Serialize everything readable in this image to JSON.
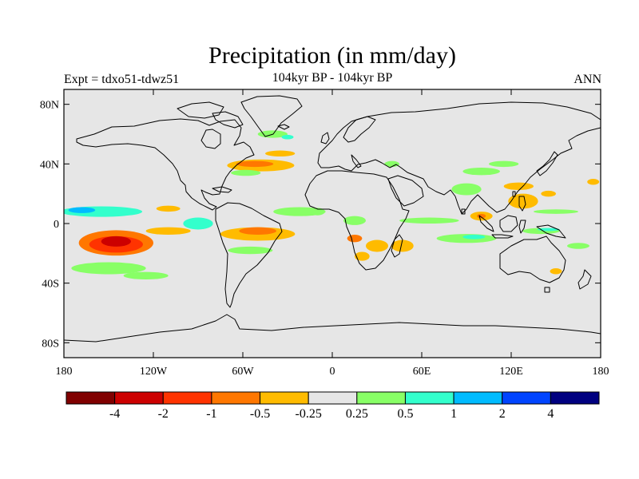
{
  "header": {
    "title": "Precipitation (in mm/day)",
    "experiment": "Expt = tdxo51-tdwz51",
    "period": "104kyr BP - 104kyr BP",
    "season": "ANN"
  },
  "map": {
    "projection": "cylindrical equidistant",
    "lon_range": [
      -180,
      180
    ],
    "lat_range": [
      -90,
      90
    ],
    "background_color": "#e6e6e6",
    "lat_ticks": [
      {
        "value": 80,
        "label": "80N"
      },
      {
        "value": 40,
        "label": "40N"
      },
      {
        "value": 0,
        "label": "0"
      },
      {
        "value": -40,
        "label": "40S"
      },
      {
        "value": -80,
        "label": "80S"
      }
    ],
    "lon_ticks": [
      {
        "value": -180,
        "label": "180"
      },
      {
        "value": -120,
        "label": "120W"
      },
      {
        "value": -60,
        "label": "60W"
      },
      {
        "value": 0,
        "label": "0"
      },
      {
        "value": 60,
        "label": "60E"
      },
      {
        "value": 120,
        "label": "120E"
      },
      {
        "value": 180,
        "label": "180"
      }
    ]
  },
  "colorbar": {
    "colors": [
      "#800000",
      "#cc0000",
      "#ff3300",
      "#ff7700",
      "#ffbb00",
      "#e6e6e6",
      "#88ff66",
      "#33ffcc",
      "#00bbff",
      "#0044ff",
      "#000080"
    ],
    "labels": [
      "-4",
      "-2",
      "-1",
      "-0.5",
      "-0.25",
      "0.25",
      "0.5",
      "1",
      "2",
      "4"
    ]
  },
  "anomalies": [
    {
      "name": "n-pacific-itcz",
      "lon": -155,
      "lat": 8,
      "w": 55,
      "h": 7,
      "level": 7
    },
    {
      "name": "n-pacific-itcz-core",
      "lon": -168,
      "lat": 9,
      "w": 18,
      "h": 4,
      "level": 8
    },
    {
      "name": "pacific-positive-small",
      "lon": -110,
      "lat": 10,
      "w": 16,
      "h": 4,
      "level": 4
    },
    {
      "name": "spcz-dry",
      "lon": -145,
      "lat": -13,
      "w": 50,
      "h": 17,
      "level": 3
    },
    {
      "name": "spcz-dry-mid",
      "lon": -145,
      "lat": -14,
      "w": 36,
      "h": 11,
      "level": 2
    },
    {
      "name": "spcz-dry-core",
      "lon": -145,
      "lat": -12,
      "w": 20,
      "h": 7,
      "level": 1
    },
    {
      "name": "s-pacific-wet",
      "lon": -150,
      "lat": -30,
      "w": 50,
      "h": 8,
      "level": 6
    },
    {
      "name": "s-pacific-wet-2",
      "lon": -125,
      "lat": -35,
      "w": 30,
      "h": 5,
      "level": 6
    },
    {
      "name": "e-pacific-dry",
      "lon": -110,
      "lat": -5,
      "w": 30,
      "h": 5,
      "level": 4
    },
    {
      "name": "e-pacific-wet",
      "lon": -90,
      "lat": 0,
      "w": 20,
      "h": 8,
      "level": 7
    },
    {
      "name": "s-america-dry",
      "lon": -50,
      "lat": -7,
      "w": 50,
      "h": 9,
      "level": 4
    },
    {
      "name": "s-america-dry-core",
      "lon": -50,
      "lat": -5,
      "w": 25,
      "h": 5,
      "level": 3
    },
    {
      "name": "s-america-wet",
      "lon": -55,
      "lat": -18,
      "w": 30,
      "h": 5,
      "level": 6
    },
    {
      "name": "n-atlantic-itcz",
      "lon": -22,
      "lat": 8,
      "w": 35,
      "h": 6,
      "level": 6
    },
    {
      "name": "gulf-stream-dry",
      "lon": -48,
      "lat": 39,
      "w": 45,
      "h": 8,
      "level": 4
    },
    {
      "name": "gulf-stream-dry-core",
      "lon": -52,
      "lat": 40,
      "w": 25,
      "h": 4,
      "level": 3
    },
    {
      "name": "n-atlantic-dry",
      "lon": -35,
      "lat": 47,
      "w": 20,
      "h": 4,
      "level": 4
    },
    {
      "name": "gulf-stream-wet",
      "lon": -58,
      "lat": 34,
      "w": 20,
      "h": 4,
      "level": 6
    },
    {
      "name": "labrador-wet",
      "lon": -40,
      "lat": 60,
      "w": 20,
      "h": 5,
      "level": 6
    },
    {
      "name": "labrador-core",
      "lon": -30,
      "lat": 58,
      "w": 8,
      "h": 3,
      "level": 7
    },
    {
      "name": "w-africa-wet",
      "lon": -10,
      "lat": 8,
      "w": 10,
      "h": 5,
      "level": 6
    },
    {
      "name": "congo-wet",
      "lon": 15,
      "lat": 2,
      "w": 15,
      "h": 6,
      "level": 6
    },
    {
      "name": "se-africa-dry",
      "lon": 30,
      "lat": -15,
      "w": 15,
      "h": 8,
      "level": 4
    },
    {
      "name": "angola-dry",
      "lon": 15,
      "lat": -10,
      "w": 10,
      "h": 5,
      "level": 3
    },
    {
      "name": "madagascar-dry",
      "lon": 47,
      "lat": -15,
      "w": 15,
      "h": 8,
      "level": 4
    },
    {
      "name": "s-africa-dry",
      "lon": 20,
      "lat": -22,
      "w": 10,
      "h": 6,
      "level": 4
    },
    {
      "name": "indian-ocean-wet",
      "lon": 65,
      "lat": 2,
      "w": 40,
      "h": 4,
      "level": 6
    },
    {
      "name": "s-indian-wet",
      "lon": 90,
      "lat": -10,
      "w": 40,
      "h": 6,
      "level": 6
    },
    {
      "name": "s-indian-core",
      "lon": 95,
      "lat": -9,
      "w": 15,
      "h": 3,
      "level": 7
    },
    {
      "name": "india-wet",
      "lon": 90,
      "lat": 23,
      "w": 20,
      "h": 8,
      "level": 6
    },
    {
      "name": "himalaya-wet",
      "lon": 100,
      "lat": 35,
      "w": 25,
      "h": 5,
      "level": 6
    },
    {
      "name": "central-asia-wet",
      "lon": 40,
      "lat": 40,
      "w": 10,
      "h": 4,
      "level": 6
    },
    {
      "name": "asia-north-wet",
      "lon": 115,
      "lat": 40,
      "w": 20,
      "h": 4,
      "level": 6
    },
    {
      "name": "maritime-dry",
      "lon": 100,
      "lat": 5,
      "w": 15,
      "h": 6,
      "level": 4
    },
    {
      "name": "maritime-dry-core",
      "lon": 100,
      "lat": 5,
      "w": 6,
      "h": 3,
      "level": 3
    },
    {
      "name": "philippines-dry",
      "lon": 128,
      "lat": 15,
      "w": 20,
      "h": 10,
      "level": 4
    },
    {
      "name": "china-dry",
      "lon": 125,
      "lat": 25,
      "w": 20,
      "h": 5,
      "level": 4
    },
    {
      "name": "w-pacific-wet",
      "lon": 150,
      "lat": 8,
      "w": 30,
      "h": 3,
      "level": 6
    },
    {
      "name": "nw-pacific-dry",
      "lon": 145,
      "lat": 20,
      "w": 10,
      "h": 4,
      "level": 4
    },
    {
      "name": "dateline-dry",
      "lon": 175,
      "lat": 28,
      "w": 8,
      "h": 4,
      "level": 4
    },
    {
      "name": "australia-wet",
      "lon": 140,
      "lat": -5,
      "w": 25,
      "h": 4,
      "level": 6
    },
    {
      "name": "australia-cyan",
      "lon": 145,
      "lat": -4,
      "w": 15,
      "h": 2,
      "level": 7
    },
    {
      "name": "e-australia-dry",
      "lon": 150,
      "lat": -32,
      "w": 8,
      "h": 4,
      "level": 4
    },
    {
      "name": "sw-pacific-wet",
      "lon": 165,
      "lat": -15,
      "w": 15,
      "h": 4,
      "level": 6
    }
  ]
}
